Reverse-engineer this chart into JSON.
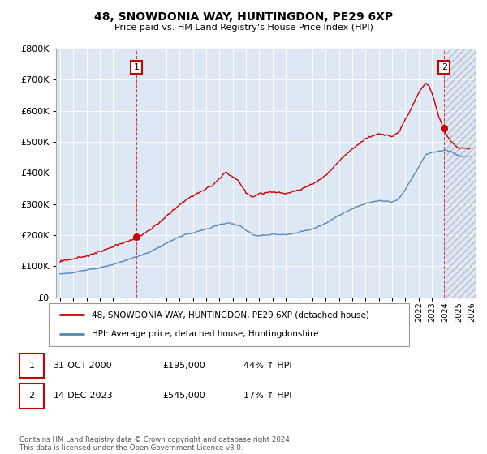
{
  "title": "48, SNOWDONIA WAY, HUNTINGDON, PE29 6XP",
  "subtitle": "Price paid vs. HM Land Registry's House Price Index (HPI)",
  "legend_line1": "48, SNOWDONIA WAY, HUNTINGDON, PE29 6XP (detached house)",
  "legend_line2": "HPI: Average price, detached house, Huntingdonshire",
  "ann1_label": "1",
  "ann1_date": "31-OCT-2000",
  "ann1_price": "£195,000",
  "ann1_hpi": "44% ↑ HPI",
  "ann2_label": "2",
  "ann2_date": "14-DEC-2023",
  "ann2_price": "£545,000",
  "ann2_hpi": "17% ↑ HPI",
  "footer": "Contains HM Land Registry data © Crown copyright and database right 2024.\nThis data is licensed under the Open Government Licence v3.0.",
  "red_color": "#cc0000",
  "blue_color": "#5588bb",
  "plot_bg": "#dde8f4",
  "ylim_min": 0,
  "ylim_max": 800000,
  "xlim_min": 1994.7,
  "xlim_max": 2026.3,
  "sale1_year": 2000,
  "sale1_month": 10,
  "sale1_price": 195000,
  "sale2_year": 2023,
  "sale2_month": 12,
  "sale2_price": 545000
}
